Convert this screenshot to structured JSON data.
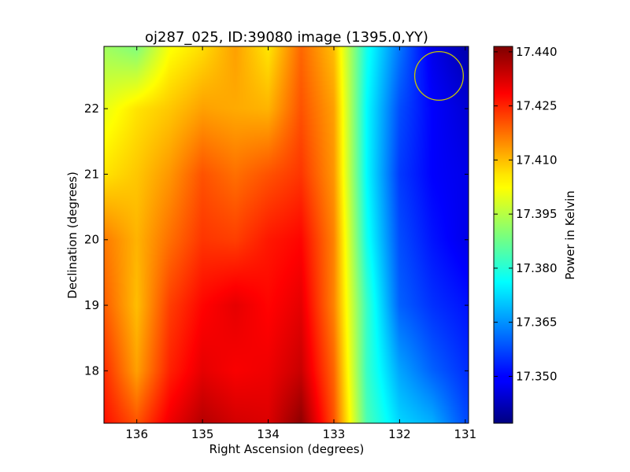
{
  "chart_data": {
    "type": "heatmap",
    "title": "oj287_025, ID:39080 image (1395.0,YY)",
    "xlabel": "Right Ascension (degrees)",
    "ylabel": "Declination (degrees)",
    "colorbar_label": "Power in Kelvin",
    "colormap": "jet",
    "xlim": [
      136.5,
      130.95
    ],
    "ylim": [
      17.2,
      22.95
    ],
    "clim": [
      17.337,
      17.4415
    ],
    "x_ticks": [
      136,
      135,
      134,
      133,
      132,
      131
    ],
    "x_tick_labels": [
      "136",
      "135",
      "134",
      "133",
      "132",
      "131"
    ],
    "y_ticks": [
      18,
      19,
      20,
      21,
      22
    ],
    "y_tick_labels": [
      "18",
      "19",
      "20",
      "21",
      "22"
    ],
    "colorbar_ticks": [
      17.35,
      17.365,
      17.38,
      17.395,
      17.41,
      17.425,
      17.44
    ],
    "colorbar_tick_labels": [
      "17.350",
      "17.365",
      "17.380",
      "17.395",
      "17.410",
      "17.425",
      "17.440"
    ],
    "grid": false,
    "ra_columns": [
      136.5,
      136.0,
      135.5,
      135.0,
      134.5,
      134.0,
      133.5,
      133.0,
      132.5,
      132.0,
      131.5,
      131.0
    ],
    "dec_rows": [
      22.9,
      22.0,
      21.0,
      20.0,
      19.0,
      18.0,
      17.2
    ],
    "values": [
      [
        17.393,
        17.39,
        17.402,
        17.406,
        17.412,
        17.405,
        17.418,
        17.409,
        17.378,
        17.362,
        17.348,
        17.342
      ],
      [
        17.4,
        17.405,
        17.408,
        17.412,
        17.411,
        17.41,
        17.42,
        17.412,
        17.376,
        17.358,
        17.35,
        17.346
      ],
      [
        17.405,
        17.408,
        17.413,
        17.42,
        17.417,
        17.42,
        17.423,
        17.413,
        17.376,
        17.356,
        17.35,
        17.348
      ],
      [
        17.416,
        17.41,
        17.417,
        17.423,
        17.422,
        17.426,
        17.428,
        17.415,
        17.378,
        17.358,
        17.352,
        17.348
      ],
      [
        17.419,
        17.409,
        17.422,
        17.428,
        17.431,
        17.428,
        17.431,
        17.415,
        17.382,
        17.36,
        17.355,
        17.352
      ],
      [
        17.424,
        17.412,
        17.425,
        17.431,
        17.429,
        17.43,
        17.434,
        17.418,
        17.382,
        17.367,
        17.36,
        17.355
      ],
      [
        17.427,
        17.42,
        17.43,
        17.436,
        17.433,
        17.432,
        17.44,
        17.42,
        17.384,
        17.372,
        17.368,
        17.358
      ]
    ],
    "annotations": [
      {
        "shape": "circle",
        "ra_center": 131.4,
        "dec_center": 22.5,
        "ra_radius": 0.37,
        "color": "#c8c800"
      }
    ]
  }
}
